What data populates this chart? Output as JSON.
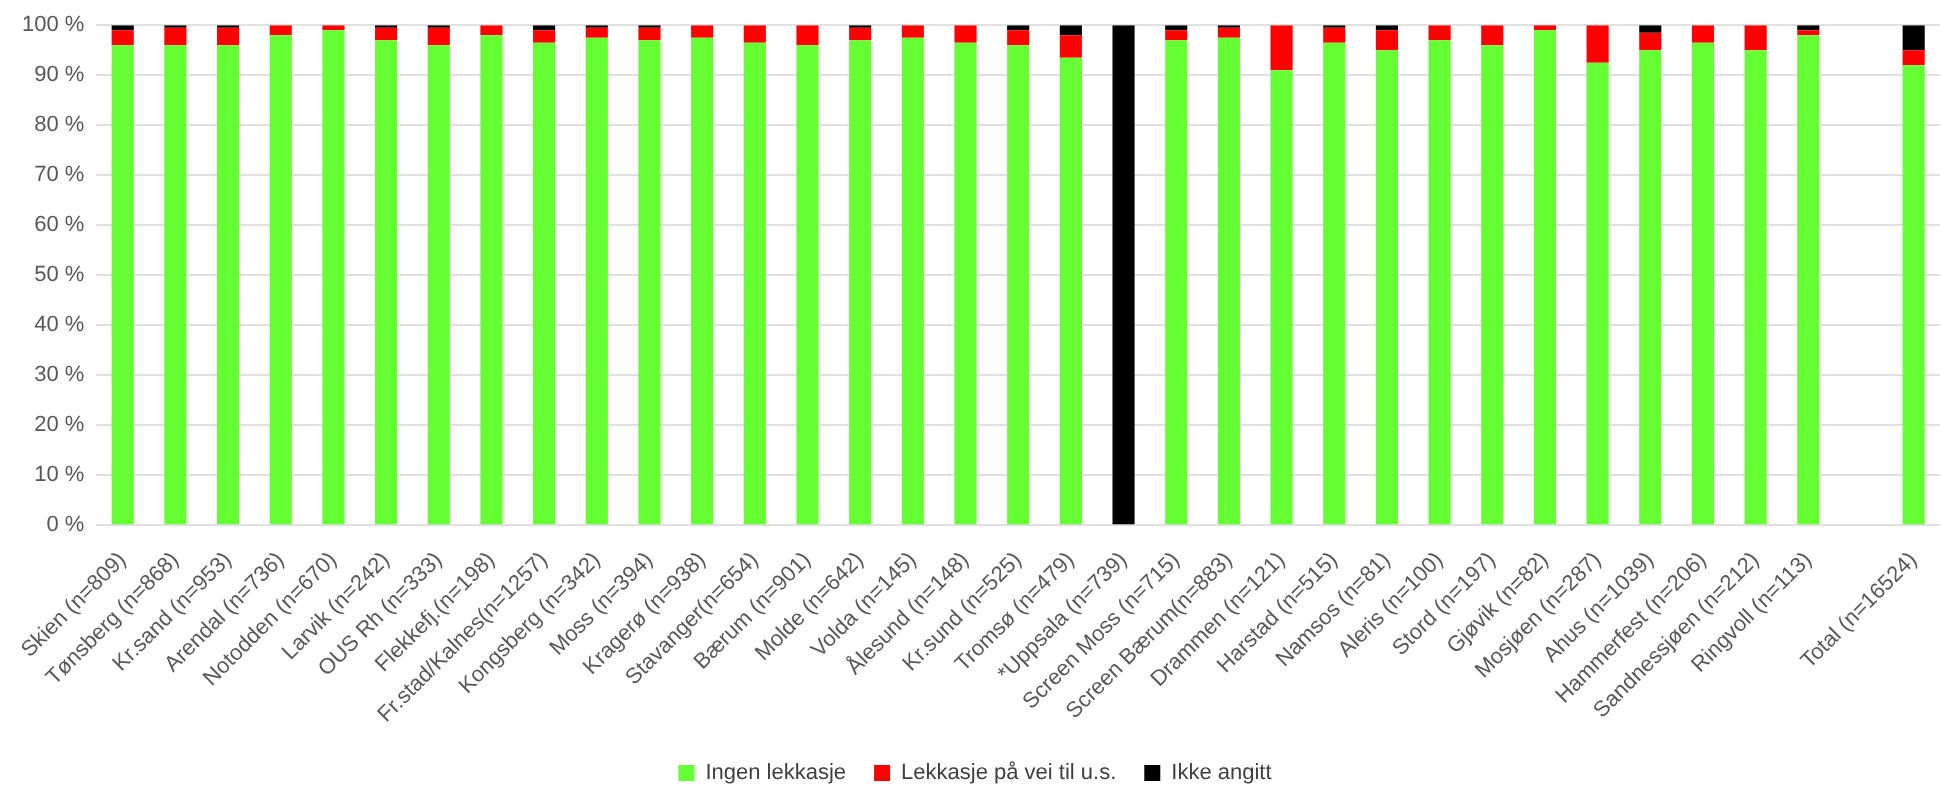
{
  "chart_data": {
    "type": "bar",
    "stacked": true,
    "categories": [
      "Skien (n=809)",
      "Tønsberg (n=868)",
      "Kr.sand (n=953)",
      "Arendal (n=736)",
      "Notodden (n=670)",
      "Larvik (n=242)",
      "OUS Rh (n=333)",
      "Flekkefj.(n=198)",
      "Fr.stad/Kalnes(n=1257)",
      "Kongsberg (n=342)",
      "Moss (n=394)",
      "Kragerø (n=938)",
      "Stavanger(n=654)",
      "Bærum (n=901)",
      "Molde (n=642)",
      "Volda (n=145)",
      "Ålesund (n=148)",
      "Kr.sund (n=525)",
      "Tromsø (n=479)",
      "*Uppsala (n=739)",
      "Screen Moss (n=715)",
      "Screen Bærum(n=883)",
      "Drammen (n=121)",
      "Harstad (n=515)",
      "Namsos (n=81)",
      "Aleris (n=100)",
      "Stord (n=197)",
      "Gjøvik (n=82)",
      "Mosjøen (n=287)",
      "Ahus (n=1039)",
      "Hammerfest (n=206)",
      "Sandnessjøen (n=212)",
      "Ringvoll (n=113)",
      null,
      "Total (n=16524)"
    ],
    "series": [
      {
        "name": "Ingen lekkasje",
        "color": "#66ff33",
        "values": [
          96,
          96,
          96,
          98,
          99,
          97,
          96,
          98,
          96.5,
          97.5,
          97,
          97.5,
          96.5,
          96,
          97,
          97.5,
          96.5,
          96,
          93.5,
          0,
          97,
          97.5,
          91,
          96.5,
          95,
          97,
          96,
          99,
          92.5,
          95,
          96.5,
          95,
          98,
          null,
          92
        ]
      },
      {
        "name": "Lekkasje på vei til u.s.",
        "color": "#ff0000",
        "values": [
          3,
          3.5,
          3.5,
          2,
          1,
          2.5,
          3.5,
          2,
          2.5,
          2,
          2.5,
          2.5,
          3.5,
          4,
          2.5,
          2.5,
          3.5,
          3,
          4.5,
          0,
          2,
          2,
          9,
          3,
          4,
          3,
          4,
          1,
          7.5,
          3.5,
          3.5,
          5,
          1,
          null,
          3
        ]
      },
      {
        "name": "Ikke angitt",
        "color": "#000000",
        "values": [
          1,
          0.5,
          0.5,
          0,
          0,
          0.5,
          0.5,
          0,
          1,
          0.5,
          0.5,
          0,
          0,
          0,
          0.5,
          0,
          0,
          1,
          2,
          100,
          1,
          0.5,
          0,
          0.5,
          1,
          0,
          0,
          0,
          0,
          1.5,
          0,
          0,
          1,
          null,
          5
        ]
      }
    ],
    "ylim": [
      0,
      100
    ],
    "yticks": [
      {
        "value": 0,
        "label": "0 %"
      },
      {
        "value": 10,
        "label": "10 %"
      },
      {
        "value": 20,
        "label": "20 %"
      },
      {
        "value": 30,
        "label": "30 %"
      },
      {
        "value": 40,
        "label": "40 %"
      },
      {
        "value": 50,
        "label": "50 %"
      },
      {
        "value": 60,
        "label": "60 %"
      },
      {
        "value": 70,
        "label": "70 %"
      },
      {
        "value": 80,
        "label": "80 %"
      },
      {
        "value": 90,
        "label": "90 %"
      },
      {
        "value": 100,
        "label": "100 %"
      }
    ],
    "grid": "y",
    "legend": "bottom"
  }
}
